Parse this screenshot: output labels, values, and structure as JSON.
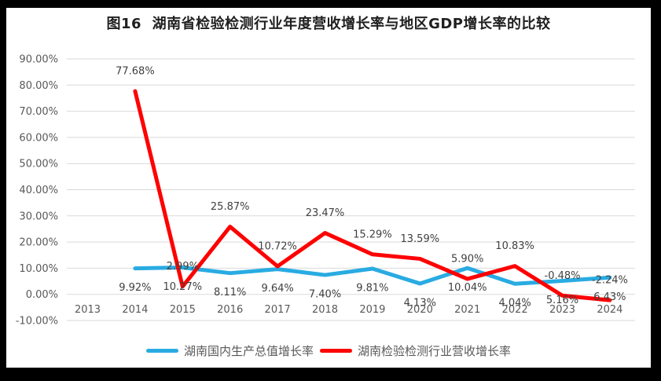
{
  "window": {
    "frame_color": "#000000",
    "card_color": "#ffffff"
  },
  "title": "图16  湖南省检验检测行业年度营收增长率与地区GDP增长率的比较",
  "legend": {
    "position": "bottom",
    "items": [
      {
        "label": "湖南国内生产总值增长率",
        "color": "#29ABE2"
      },
      {
        "label": "湖南检验检测行业营收增长率",
        "color": "#FE0000"
      }
    ]
  },
  "axes": {
    "y_tick_labels": [
      "90.00%",
      "80.00%",
      "70.00%",
      "60.00%",
      "50.00%",
      "40.00%",
      "30.00%",
      "20.00%",
      "10.00%",
      "0.00%",
      "-10.00%"
    ],
    "x_tick_labels": [
      "2013",
      "2014",
      "2015",
      "2016",
      "2017",
      "2018",
      "2019",
      "2020",
      "2021",
      "2022",
      "2023",
      "2024"
    ],
    "tick_color": "#595959",
    "gridline_color": "#D9D9D9"
  },
  "chart_data": {
    "type": "line",
    "title": "图16  湖南省检验检测行业年度营收增长率与地区GDP增长率的比较",
    "categories": [
      "2013",
      "2014",
      "2015",
      "2016",
      "2017",
      "2018",
      "2019",
      "2020",
      "2021",
      "2022",
      "2023",
      "2024"
    ],
    "ylim": [
      -10,
      90
    ],
    "ytick_step": 10,
    "ytick_labels": [
      "90.00%",
      "80.00%",
      "70.00%",
      "60.00%",
      "50.00%",
      "40.00%",
      "30.00%",
      "20.00%",
      "10.00%",
      "0.00%",
      "-10.00%"
    ],
    "grid": true,
    "legend_position": "bottom",
    "series": [
      {
        "id": "gdp-growth",
        "name": "湖南国内生产总值增长率",
        "color": "#29ABE2",
        "label_position": "below",
        "start_category": "2014",
        "values": [
          9.92,
          10.27,
          8.11,
          9.64,
          7.4,
          9.81,
          4.13,
          10.04,
          4.04,
          5.16,
          6.43
        ],
        "labels": [
          "9.92%",
          "10.27%",
          "8.11%",
          "9.64%",
          "7.40%",
          "9.81%",
          "4.13%",
          "10.04%",
          "4.04%",
          "5.16%",
          "6.43%"
        ]
      },
      {
        "id": "testing-revenue",
        "name": "湖南检验检测行业营收增长率",
        "color": "#FE0000",
        "label_position": "above",
        "start_category": "2014",
        "values": [
          77.68,
          2.99,
          25.87,
          10.72,
          23.47,
          15.29,
          13.59,
          5.9,
          10.83,
          -0.48,
          -2.24
        ],
        "labels": [
          "77.68%",
          "2.99%",
          "25.87%",
          "10.72%",
          "23.47%",
          "15.29%",
          "13.59%",
          "5.90%",
          "10.83%",
          "-0.48%",
          "-2.24%"
        ]
      }
    ]
  }
}
